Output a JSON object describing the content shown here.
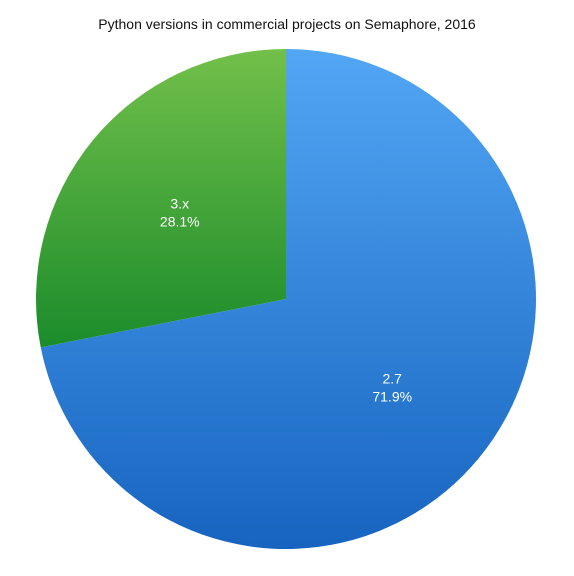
{
  "chart_data": {
    "type": "pie",
    "title": "Python versions in commercial projects on Semaphore, 2016",
    "slices": [
      {
        "label": "2.7",
        "value": 71.9,
        "value_label": "71.9%",
        "color": "#3384dd"
      },
      {
        "label": "3.x",
        "value": 28.1,
        "value_label": "28.1%",
        "color": "#3fa43c"
      }
    ],
    "legend": "none"
  }
}
